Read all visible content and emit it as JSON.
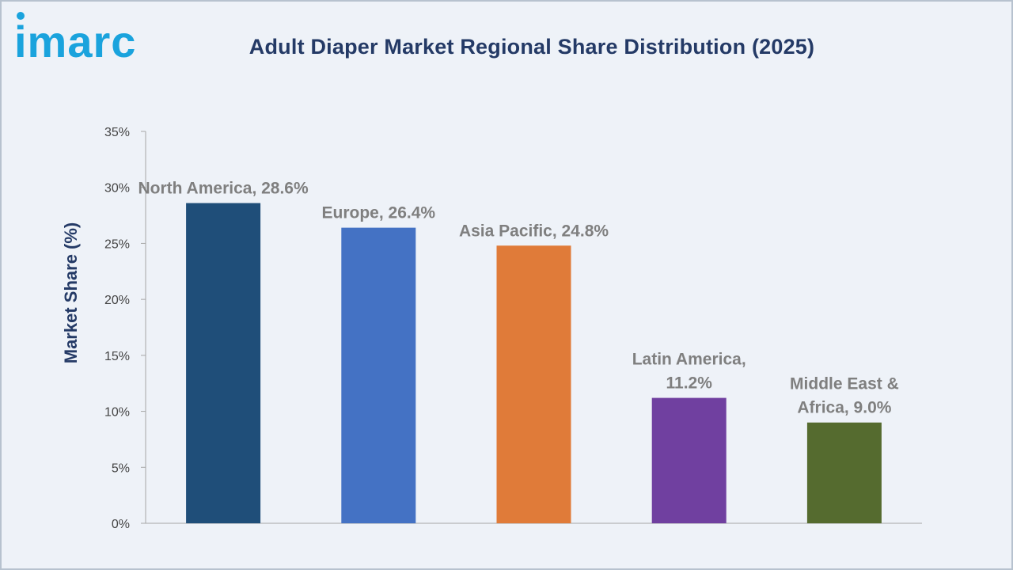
{
  "brand": {
    "logo_text": "imarc"
  },
  "colors": {
    "logo": "#1aa3dd",
    "title": "#243a66",
    "axis": "#a6a6a6",
    "label": "#7f7f7f"
  },
  "chart_data": {
    "type": "bar",
    "title": "Adult Diaper Market Regional Share Distribution (2025)",
    "ylabel": "Market Share (%)",
    "xlabel": "",
    "ylim": [
      0,
      35
    ],
    "ytick_step": 5,
    "ytick_suffix": "%",
    "grid": false,
    "categories": [
      "North America",
      "Europe",
      "Asia Pacific",
      "Latin America",
      "Middle East & Africa"
    ],
    "values": [
      28.6,
      26.4,
      24.8,
      11.2,
      9.0
    ],
    "data_labels": [
      [
        "North America, 28.6%"
      ],
      [
        "Europe, 26.4%"
      ],
      [
        "Asia Pacific, 24.8%"
      ],
      [
        "Latin America,",
        "11.2%"
      ],
      [
        "Middle East &",
        "Africa, 9.0%"
      ]
    ],
    "bar_colors": [
      "#1f4e79",
      "#4472c4",
      "#e07b39",
      "#7040a0",
      "#556b2f"
    ]
  }
}
